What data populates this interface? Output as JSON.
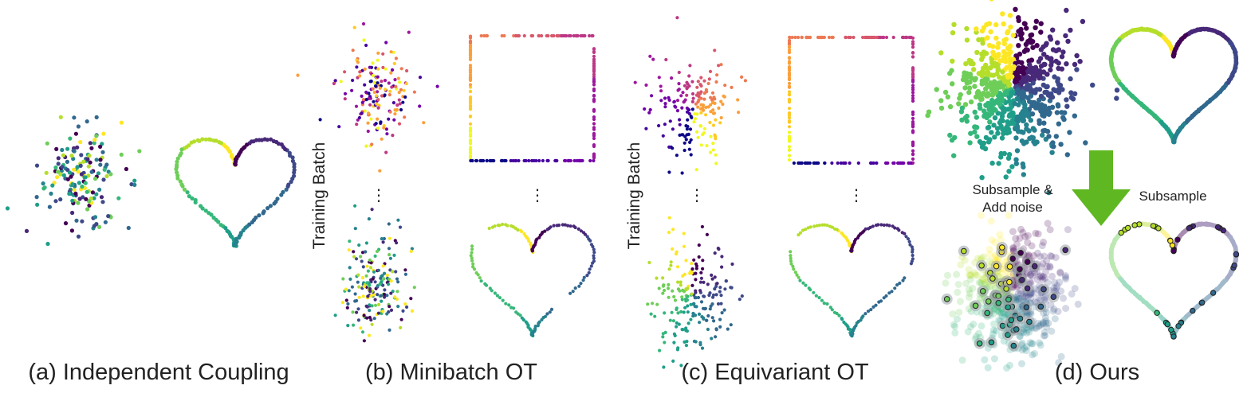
{
  "captions": {
    "a": "(a) Independent Coupling",
    "b": "(b) Minibatch OT",
    "c": "(c) Equivariant OT",
    "d": "(d) Ours"
  },
  "labels": {
    "training_batch_b": "Training Batch",
    "training_batch_c": "Training Batch",
    "subsample_noise_line1": "Subsample &",
    "subsample_noise_line2": "Add noise",
    "subsample": "Subsample"
  },
  "ellipsis": "⋮",
  "colors": {
    "arrow": "#5fb821",
    "highlight_ring": "#222222",
    "viridis": [
      "#440154",
      "#482878",
      "#3e4989",
      "#31688e",
      "#26828e",
      "#1f9e89",
      "#35b779",
      "#6ece58",
      "#b5de2b",
      "#fde725"
    ],
    "plasma": [
      "#0d0887",
      "#46039f",
      "#7201a8",
      "#9c179e",
      "#bd3786",
      "#d8576b",
      "#ed7953",
      "#fb9f3a",
      "#fdca26",
      "#f0f921"
    ]
  }
}
